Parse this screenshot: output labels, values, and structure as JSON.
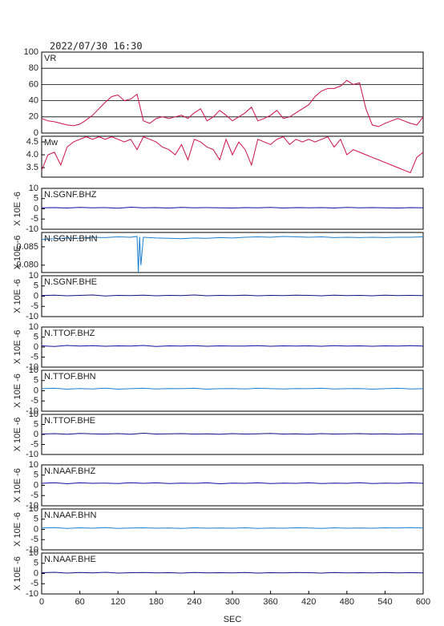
{
  "chart_data": [
    {
      "type": "line",
      "title": "2022/07/30 16:30",
      "ylim": [
        0,
        100
      ],
      "yticks": [
        0,
        20,
        40,
        60,
        80,
        100
      ],
      "grid": true,
      "xlim": [
        0,
        600
      ],
      "x": [
        0,
        10,
        20,
        30,
        40,
        50,
        60,
        70,
        80,
        90,
        100,
        110,
        120,
        130,
        140,
        150,
        160,
        170,
        180,
        190,
        200,
        210,
        220,
        230,
        240,
        250,
        260,
        270,
        280,
        290,
        300,
        310,
        320,
        330,
        340,
        350,
        360,
        370,
        380,
        390,
        400,
        410,
        420,
        430,
        440,
        450,
        460,
        470,
        480,
        490,
        500,
        510,
        520,
        530,
        540,
        550,
        560,
        570,
        580,
        590,
        600
      ],
      "series": [
        {
          "name": "VR",
          "color": "#cc1144",
          "values": [
            18,
            15,
            14,
            12,
            10,
            9,
            11,
            16,
            22,
            30,
            38,
            45,
            47,
            40,
            42,
            48,
            15,
            12,
            18,
            20,
            18,
            20,
            22,
            18,
            25,
            30,
            15,
            20,
            28,
            22,
            15,
            20,
            25,
            32,
            15,
            18,
            22,
            28,
            18,
            20,
            25,
            30,
            35,
            45,
            52,
            55,
            55,
            58,
            65,
            60,
            62,
            30,
            10,
            8,
            12,
            15,
            18,
            15,
            12,
            10,
            20
          ]
        }
      ]
    },
    {
      "type": "line",
      "ylim": [
        3.13,
        4.72
      ],
      "yticks": [
        {
          "value": 3.5,
          "label": "3.5"
        },
        {
          "value": 4.0,
          "label": "4.0"
        },
        {
          "value": 4.5,
          "label": "4.5"
        }
      ],
      "xlim": [
        0,
        600
      ],
      "x": [
        0,
        10,
        20,
        30,
        40,
        50,
        60,
        70,
        80,
        90,
        100,
        110,
        120,
        130,
        140,
        150,
        160,
        170,
        180,
        190,
        200,
        210,
        220,
        230,
        240,
        250,
        260,
        270,
        280,
        290,
        300,
        310,
        320,
        330,
        340,
        350,
        360,
        370,
        380,
        390,
        400,
        410,
        420,
        430,
        440,
        450,
        460,
        470,
        480,
        490,
        500,
        510,
        520,
        530,
        540,
        550,
        560,
        570,
        580,
        590,
        600
      ],
      "series": [
        {
          "name": "Mw",
          "color": "#cc1144",
          "values": [
            3.4,
            4.0,
            4.1,
            3.6,
            4.3,
            4.5,
            4.6,
            4.7,
            4.6,
            4.7,
            4.6,
            4.7,
            4.6,
            4.5,
            4.6,
            4.2,
            4.7,
            4.6,
            4.5,
            4.3,
            4.2,
            4.0,
            4.4,
            3.8,
            4.6,
            4.5,
            4.3,
            4.2,
            3.8,
            4.6,
            4.0,
            4.5,
            4.2,
            3.6,
            4.6,
            4.5,
            4.4,
            4.6,
            4.7,
            4.4,
            4.6,
            4.5,
            4.6,
            4.5,
            4.6,
            4.7,
            4.3,
            4.6,
            4.0,
            4.2,
            4.1,
            4.0,
            3.9,
            3.8,
            3.7,
            3.6,
            3.5,
            3.4,
            3.3,
            3.9,
            4.1
          ]
        }
      ]
    },
    {
      "type": "line",
      "ylabel": "X 10E -6",
      "ylim": [
        -10,
        10
      ],
      "yticks": [
        -10,
        -5,
        0,
        5,
        10
      ],
      "xlim": [
        0,
        600
      ],
      "x": [
        0,
        20,
        40,
        60,
        80,
        100,
        120,
        140,
        160,
        180,
        200,
        220,
        240,
        260,
        280,
        300,
        320,
        340,
        360,
        380,
        400,
        420,
        440,
        460,
        480,
        500,
        520,
        540,
        560,
        580,
        600
      ],
      "series": [
        {
          "name": "N.SGNF.BHZ",
          "color": "#1010a0",
          "values": [
            0.5,
            0.6,
            0.4,
            0.7,
            0.5,
            0.6,
            0.3,
            0.8,
            0.5,
            0.6,
            0.4,
            0.7,
            0.5,
            0.6,
            0.5,
            0.4,
            0.6,
            0.5,
            0.7,
            0.4,
            0.6,
            0.5,
            0.6,
            0.4,
            0.7,
            0.5,
            0.6,
            0.5,
            0.4,
            0.6,
            0.5
          ]
        }
      ]
    },
    {
      "type": "line",
      "ylabel": "X 10E -6",
      "ylim": [
        0.078,
        0.0889
      ],
      "yticks": [
        {
          "value": 0.08,
          "label": "0.080"
        },
        {
          "value": 0.085,
          "label": "0.085"
        }
      ],
      "xlim": [
        0,
        600
      ],
      "x": [
        0,
        20,
        40,
        60,
        80,
        100,
        120,
        140,
        150,
        152,
        154,
        156,
        160,
        180,
        200,
        220,
        240,
        260,
        280,
        300,
        320,
        340,
        360,
        380,
        400,
        420,
        440,
        460,
        480,
        500,
        520,
        540,
        560,
        580,
        600
      ],
      "series": [
        {
          "name": "N.SGNF.BHN",
          "color": "#1a7fd0",
          "values": [
            0.087,
            0.0872,
            0.0874,
            0.0873,
            0.0876,
            0.0875,
            0.0877,
            0.0876,
            0.0878,
            0.078,
            0.0877,
            0.08,
            0.0876,
            0.0874,
            0.0873,
            0.0872,
            0.0874,
            0.0873,
            0.0875,
            0.0874,
            0.0876,
            0.0877,
            0.0876,
            0.0878,
            0.0877,
            0.0876,
            0.0877,
            0.0875,
            0.0876,
            0.0875,
            0.0876,
            0.0875,
            0.0876,
            0.0876,
            0.0877
          ]
        }
      ]
    },
    {
      "type": "line",
      "ylabel": "X 10E -6",
      "ylim": [
        -10,
        10
      ],
      "yticks": [
        -10,
        -5,
        0,
        5,
        10
      ],
      "xlim": [
        0,
        600
      ],
      "x": [
        0,
        20,
        40,
        60,
        80,
        100,
        120,
        140,
        160,
        180,
        200,
        220,
        240,
        260,
        280,
        300,
        320,
        340,
        360,
        380,
        400,
        420,
        440,
        460,
        480,
        500,
        520,
        540,
        560,
        580,
        600
      ],
      "series": [
        {
          "name": "N.SGNF.BHE",
          "color": "#101080",
          "values": [
            0.3,
            0.5,
            0.2,
            0.4,
            0.6,
            0.1,
            0.4,
            0.3,
            0.5,
            0.2,
            0.4,
            0.3,
            0.6,
            0.2,
            0.4,
            0.3,
            0.5,
            0.2,
            0.4,
            0.3,
            0.5,
            0.4,
            0.2,
            0.5,
            0.3,
            0.4,
            0.2,
            0.5,
            0.3,
            0.4,
            0.3
          ]
        }
      ]
    },
    {
      "type": "line",
      "ylabel": "X 10E -6",
      "ylim": [
        -10,
        10
      ],
      "yticks": [
        -10,
        -5,
        0,
        5,
        10
      ],
      "xlim": [
        0,
        600
      ],
      "x": [
        0,
        20,
        40,
        60,
        80,
        100,
        120,
        140,
        160,
        180,
        200,
        220,
        240,
        260,
        280,
        300,
        320,
        340,
        360,
        380,
        400,
        420,
        440,
        460,
        480,
        500,
        520,
        540,
        560,
        580,
        600
      ],
      "series": [
        {
          "name": "N.TTOF.BHZ",
          "color": "#1010a0",
          "values": [
            0.6,
            0.3,
            0.8,
            0.5,
            0.7,
            0.4,
            0.6,
            0.5,
            0.8,
            0.3,
            0.6,
            0.5,
            0.7,
            0.4,
            0.6,
            0.5,
            0.5,
            0.7,
            0.4,
            0.6,
            0.5,
            0.6,
            0.4,
            0.7,
            0.5,
            0.6,
            0.4,
            0.6,
            0.5,
            0.7,
            0.5
          ]
        }
      ]
    },
    {
      "type": "line",
      "ylabel": "X 10E -6",
      "ylim": [
        -10,
        10
      ],
      "yticks": [
        -10,
        -5,
        0,
        5,
        10
      ],
      "xlim": [
        0,
        600
      ],
      "x": [
        0,
        20,
        40,
        60,
        80,
        100,
        120,
        140,
        160,
        180,
        200,
        220,
        240,
        260,
        280,
        300,
        320,
        340,
        360,
        380,
        400,
        420,
        440,
        460,
        480,
        500,
        520,
        540,
        560,
        580,
        600
      ],
      "series": [
        {
          "name": "N.TTOF.BHN",
          "color": "#1a7fd0",
          "values": [
            1.0,
            1.2,
            0.8,
            1.1,
            0.9,
            1.3,
            0.8,
            1.0,
            1.2,
            0.9,
            1.1,
            1.0,
            1.2,
            0.8,
            1.0,
            1.1,
            0.9,
            1.2,
            1.0,
            0.9,
            1.1,
            1.0,
            1.2,
            0.9,
            1.0,
            1.1,
            0.8,
            1.0,
            1.2,
            0.9,
            1.0
          ]
        }
      ]
    },
    {
      "type": "line",
      "ylabel": "X 10E -6",
      "ylim": [
        -10,
        10
      ],
      "yticks": [
        -10,
        -5,
        0,
        5,
        10
      ],
      "xlim": [
        0,
        600
      ],
      "x": [
        0,
        20,
        40,
        60,
        80,
        100,
        120,
        140,
        160,
        180,
        200,
        220,
        240,
        260,
        280,
        300,
        320,
        340,
        360,
        380,
        400,
        420,
        440,
        460,
        480,
        500,
        520,
        540,
        560,
        580,
        600
      ],
      "series": [
        {
          "name": "N.TTOF.BHE",
          "color": "#101080",
          "values": [
            0.2,
            0.4,
            0.1,
            0.5,
            0.3,
            0.2,
            0.4,
            0.1,
            0.6,
            0.2,
            0.3,
            0.4,
            0.2,
            0.3,
            0.1,
            0.4,
            0.2,
            0.3,
            0.5,
            0.2,
            0.3,
            0.1,
            0.4,
            0.2,
            0.3,
            0.4,
            0.2,
            0.3,
            0.1,
            0.3,
            0.2
          ]
        }
      ]
    },
    {
      "type": "line",
      "ylabel": "X 10E -6",
      "ylim": [
        -10,
        10
      ],
      "yticks": [
        -10,
        -5,
        0,
        5,
        10
      ],
      "xlim": [
        0,
        600
      ],
      "x": [
        0,
        20,
        40,
        60,
        80,
        100,
        120,
        140,
        160,
        180,
        200,
        220,
        240,
        260,
        280,
        300,
        320,
        340,
        360,
        380,
        400,
        420,
        440,
        460,
        480,
        500,
        520,
        540,
        560,
        580,
        600
      ],
      "series": [
        {
          "name": "N.NAAF.BHZ",
          "color": "#1010a0",
          "values": [
            1.0,
            1.3,
            0.8,
            1.2,
            1.0,
            1.1,
            0.9,
            1.3,
            1.0,
            1.2,
            0.9,
            1.1,
            1.0,
            1.2,
            0.8,
            1.1,
            1.0,
            1.2,
            0.9,
            1.1,
            1.0,
            1.2,
            0.9,
            1.1,
            1.0,
            1.3,
            0.9,
            1.1,
            1.0,
            1.2,
            1.0
          ]
        }
      ]
    },
    {
      "type": "line",
      "ylabel": "X 10E -6",
      "ylim": [
        -10,
        10
      ],
      "yticks": [
        -10,
        -5,
        0,
        5,
        10
      ],
      "xlim": [
        0,
        600
      ],
      "x": [
        0,
        20,
        40,
        60,
        80,
        100,
        120,
        140,
        160,
        180,
        200,
        220,
        240,
        260,
        280,
        300,
        320,
        340,
        360,
        380,
        400,
        420,
        440,
        460,
        480,
        500,
        520,
        540,
        560,
        580,
        600
      ],
      "series": [
        {
          "name": "N.NAAF.BHN",
          "color": "#1a7fd0",
          "values": [
            0.7,
            0.9,
            0.5,
            0.8,
            0.6,
            0.9,
            0.5,
            0.7,
            0.8,
            0.6,
            0.7,
            0.5,
            0.8,
            0.6,
            0.7,
            0.6,
            0.8,
            0.5,
            0.7,
            0.6,
            0.8,
            0.7,
            0.5,
            0.8,
            0.6,
            0.7,
            0.6,
            0.8,
            0.7,
            0.9,
            0.7
          ]
        }
      ]
    },
    {
      "type": "line",
      "ylabel": "X 10E -6",
      "ylim": [
        -10,
        10
      ],
      "yticks": [
        -10,
        -5,
        0,
        5,
        10
      ],
      "xlim": [
        0,
        600
      ],
      "xticks": [
        0,
        60,
        120,
        180,
        240,
        300,
        360,
        420,
        480,
        540,
        600
      ],
      "xlabel": "SEC",
      "x": [
        0,
        20,
        40,
        60,
        80,
        100,
        120,
        140,
        160,
        180,
        200,
        220,
        240,
        260,
        280,
        300,
        320,
        340,
        360,
        380,
        400,
        420,
        440,
        460,
        480,
        500,
        520,
        540,
        560,
        580,
        600
      ],
      "series": [
        {
          "name": "N.NAAF.BHE",
          "color": "#101080",
          "values": [
            0.4,
            0.6,
            0.2,
            0.5,
            0.3,
            0.6,
            0.2,
            0.4,
            0.5,
            0.3,
            0.4,
            0.2,
            0.5,
            0.3,
            0.4,
            0.3,
            0.5,
            0.2,
            0.4,
            0.3,
            0.5,
            0.4,
            0.2,
            0.5,
            0.3,
            0.4,
            0.3,
            0.5,
            0.3,
            0.4,
            0.3
          ]
        }
      ]
    }
  ]
}
